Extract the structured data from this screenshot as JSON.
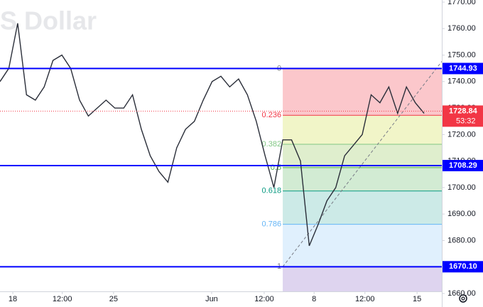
{
  "chart_data": {
    "type": "line",
    "watermark": "S Dollar",
    "x": [
      0,
      2,
      4,
      6,
      8,
      10,
      12,
      14,
      16,
      18,
      20,
      22,
      24,
      26,
      28,
      30,
      32,
      34,
      36,
      38,
      40,
      42,
      44,
      46,
      48,
      50,
      52,
      54,
      56,
      58,
      60,
      62,
      64,
      66,
      68,
      70,
      72,
      74,
      76,
      78,
      80,
      82,
      84,
      86,
      88,
      90,
      92,
      94,
      96
    ],
    "series": [
      {
        "color": "#2a2e39",
        "values": [
          1740,
          1745,
          1762,
          1735,
          1733,
          1738,
          1748,
          1750,
          1745,
          1733,
          1727,
          1730,
          1733,
          1730,
          1730,
          1735,
          1722,
          1712,
          1706,
          1702,
          1715,
          1722,
          1725,
          1733,
          1740,
          1742,
          1738,
          1741,
          1735,
          1725,
          1712,
          1700,
          1718,
          1718,
          1710,
          1678,
          1686,
          1695,
          1700,
          1712,
          1716,
          1720,
          1735,
          1732,
          1738,
          1728,
          1738,
          1732,
          1728
        ]
      }
    ],
    "xlim": [
      0,
      100
    ],
    "xticks": [
      {
        "value": 2.9,
        "label": "18"
      },
      {
        "value": 14.1,
        "label": "12:00"
      },
      {
        "value": 25.7,
        "label": "25"
      },
      {
        "value": 47.9,
        "label": "Jun"
      },
      {
        "value": 59.8,
        "label": "12:00"
      },
      {
        "value": 71.1,
        "label": "8"
      },
      {
        "value": 82.6,
        "label": "12:00"
      },
      {
        "value": 94.4,
        "label": "15"
      }
    ],
    "ylim": [
      1660.8,
      1770.8
    ],
    "yticks": [
      {
        "value": 1660,
        "label": "1660.00"
      },
      {
        "value": 1670,
        "label": "1670.00"
      },
      {
        "value": 1680,
        "label": "1680.00"
      },
      {
        "value": 1690,
        "label": "1690.00"
      },
      {
        "value": 1700,
        "label": "1700.00"
      },
      {
        "value": 1710,
        "label": "1710.00"
      },
      {
        "value": 1720,
        "label": "1720.00"
      },
      {
        "value": 1730,
        "label": "1730.00"
      },
      {
        "value": 1740,
        "label": "1740.00"
      },
      {
        "value": 1750,
        "label": "1750.00"
      },
      {
        "value": 1760,
        "label": "1760.00"
      },
      {
        "value": 1770,
        "label": "1770.00"
      }
    ],
    "hlines": [
      {
        "value": 1744.93
      },
      {
        "value": 1708.29
      },
      {
        "value": 1670.1,
        "label": "1670.10"
      }
    ],
    "hline_color": "#0000ff",
    "current_price": {
      "value": 1728.84,
      "countdown": "53:32",
      "color": "#f23645"
    },
    "fib": {
      "x_start": 64,
      "levels": [
        0,
        0.236,
        0.382,
        0.5,
        0.618,
        0.786,
        1
      ],
      "colors": [
        "#787b86",
        "#f23645",
        "#81c784",
        "#4caf50",
        "#089981",
        "#64b5f6",
        "#787b86"
      ],
      "zones": [
        "rgba(242,54,69,0.28)",
        "rgba(205,220,57,0.28)",
        "rgba(139,195,74,0.28)",
        "rgba(76,175,80,0.25)",
        "rgba(0,150,136,0.2)",
        "rgba(100,181,246,0.2)"
      ]
    }
  }
}
